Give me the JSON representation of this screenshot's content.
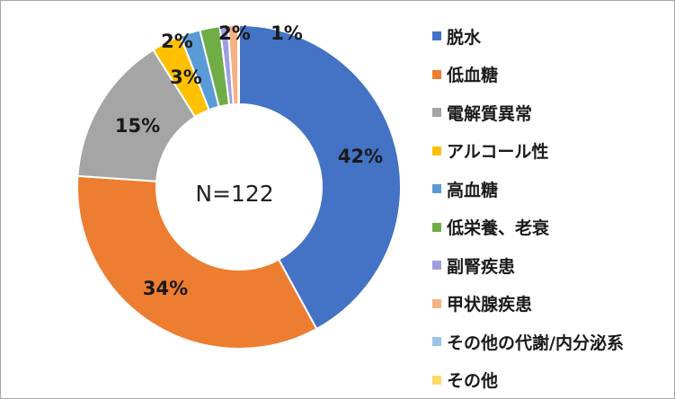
{
  "chart_data": {
    "type": "pie",
    "variant": "donut",
    "center_text": "N=122",
    "legend_position": "right",
    "slices": [
      {
        "name": "脱水",
        "value": 42,
        "label": "42%",
        "color": "#4472c4"
      },
      {
        "name": "低血糖",
        "value": 34,
        "label": "34%",
        "color": "#ed7d31"
      },
      {
        "name": "電解質異常",
        "value": 15,
        "label": "15%",
        "color": "#a5a5a5"
      },
      {
        "name": "アルコール性",
        "value": 3,
        "label": "3%",
        "color": "#ffc000"
      },
      {
        "name": "高血糖",
        "value": 2,
        "label": "",
        "color": "#5b9bd5"
      },
      {
        "name": "低栄養、老衰",
        "value": 2,
        "label": "2%",
        "color": "#70ad47"
      },
      {
        "name": "副腎疾患",
        "value": 0.8,
        "label": "",
        "color": "#9e9ee0"
      },
      {
        "name": "甲状腺疾患",
        "value": 1,
        "label": "1%",
        "color": "#f4b183"
      },
      {
        "name": "その他の代謝/内分泌系",
        "value": 0.05,
        "label": "",
        "color": "#9dc3e6"
      },
      {
        "name": "その他",
        "value": 0.05,
        "label": "",
        "color": "#ffd966"
      }
    ],
    "extra_labels": [
      "2%"
    ]
  }
}
